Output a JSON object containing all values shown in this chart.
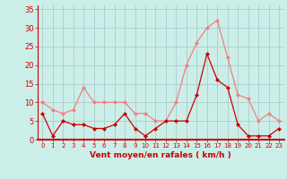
{
  "x": [
    0,
    1,
    2,
    3,
    4,
    5,
    6,
    7,
    8,
    9,
    10,
    11,
    12,
    13,
    14,
    15,
    16,
    17,
    18,
    19,
    20,
    21,
    22,
    23
  ],
  "rafales": [
    10,
    8,
    7,
    8,
    14,
    10,
    10,
    10,
    10,
    7,
    7,
    5,
    5,
    10,
    20,
    26,
    30,
    32,
    22,
    12,
    11,
    5,
    7,
    5
  ],
  "moyen": [
    7,
    1,
    5,
    4,
    4,
    3,
    3,
    4,
    7,
    3,
    1,
    3,
    5,
    5,
    5,
    12,
    23,
    16,
    14,
    4,
    1,
    1,
    1,
    3
  ],
  "line_color_rafales": "#f08080",
  "line_color_moyen": "#cc0000",
  "marker_color_rafales": "#f08080",
  "marker_color_moyen": "#cc0000",
  "bg_color": "#cceee8",
  "grid_color": "#aacccc",
  "axis_color": "#cc0000",
  "tick_color": "#cc0000",
  "xlabel": "Vent moyen/en rafales ( km/h )",
  "ylim": [
    0,
    36
  ],
  "yticks": [
    0,
    5,
    10,
    15,
    20,
    25,
    30,
    35
  ],
  "xlim": [
    -0.5,
    23.5
  ]
}
